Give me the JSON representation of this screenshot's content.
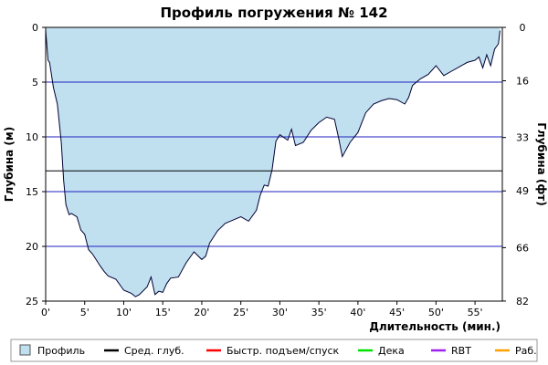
{
  "chart_data": {
    "type": "area",
    "title": "Профиль погружения № 142",
    "xlabel": "Длительность (мин.)",
    "ylabel_left": "Глубина (м)",
    "ylabel_right": "Глубина (фт)",
    "x_ticks": [
      "0'",
      "5'",
      "10'",
      "15'",
      "20'",
      "25'",
      "30'",
      "35'",
      "40'",
      "45'",
      "50'",
      "55'"
    ],
    "x_tick_values": [
      0,
      5,
      10,
      15,
      20,
      25,
      30,
      35,
      40,
      45,
      50,
      55
    ],
    "y_ticks_left": [
      "0",
      "5",
      "10",
      "15",
      "20",
      "25"
    ],
    "y_tick_values_left": [
      0,
      5,
      10,
      15,
      20,
      25
    ],
    "y_ticks_right": [
      "0",
      "16",
      "33",
      "49",
      "66",
      "82"
    ],
    "xlim": [
      0,
      58.5
    ],
    "ylim": [
      0,
      25
    ],
    "grid": true,
    "average_depth": 13.1,
    "series": [
      {
        "name": "Профиль",
        "color": "#c0e0f0",
        "x": [
          0,
          0.3,
          0.5,
          1.0,
          1.5,
          2.0,
          2.3,
          2.6,
          3.0,
          3.3,
          4.0,
          4.5,
          5.0,
          5.5,
          6.0,
          7.0,
          7.5,
          8.0,
          9.0,
          10.0,
          11.0,
          11.5,
          12.0,
          13.0,
          13.5,
          14.0,
          14.5,
          15.0,
          15.5,
          16.0,
          17.0,
          18.0,
          19.0,
          20.0,
          20.5,
          21.0,
          22.0,
          23.0,
          24.0,
          25.0,
          26.0,
          27.0,
          27.5,
          28.0,
          28.5,
          29.0,
          29.5,
          30.0,
          31.0,
          31.5,
          32.0,
          33.0,
          34.0,
          35.0,
          36.0,
          37.0,
          37.5,
          38.0,
          39.0,
          40.0,
          41.0,
          42.0,
          43.0,
          44.0,
          45.0,
          46.0,
          46.5,
          47.0,
          48.0,
          49.0,
          50.0,
          51.0,
          52.0,
          53.0,
          54.0,
          55.0,
          55.5,
          56.0,
          56.5,
          57.0,
          57.5,
          58.0,
          58.2
        ],
        "y": [
          0.3,
          3.0,
          3.2,
          5.5,
          7.0,
          10.5,
          14.0,
          16.2,
          17.1,
          17.0,
          17.3,
          18.5,
          18.9,
          20.3,
          20.7,
          21.8,
          22.3,
          22.7,
          23.0,
          24.0,
          24.3,
          24.6,
          24.4,
          23.7,
          22.8,
          24.4,
          24.1,
          24.2,
          23.4,
          22.9,
          22.8,
          21.5,
          20.5,
          21.2,
          20.9,
          19.7,
          18.6,
          17.9,
          17.6,
          17.3,
          17.7,
          16.7,
          15.3,
          14.4,
          14.5,
          13.0,
          10.4,
          9.8,
          10.3,
          9.3,
          10.8,
          10.5,
          9.4,
          8.7,
          8.2,
          8.4,
          10.0,
          11.8,
          10.5,
          9.6,
          7.8,
          7.0,
          6.7,
          6.5,
          6.6,
          7.0,
          6.4,
          5.3,
          4.7,
          4.3,
          3.5,
          4.4,
          4.0,
          3.6,
          3.2,
          3.0,
          2.7,
          3.7,
          2.5,
          3.5,
          2.0,
          1.5,
          0.3
        ]
      }
    ],
    "legend": {
      "placement": "bottom",
      "items": [
        {
          "label": "Профиль",
          "color": "#c0e0f0",
          "kind": "box"
        },
        {
          "label": "Сред. глуб.",
          "color": "#000000",
          "kind": "line"
        },
        {
          "label": "Быстр. подъем/спуск",
          "color": "#ff0000",
          "kind": "line"
        },
        {
          "label": "Дека",
          "color": "#00e000",
          "kind": "line"
        },
        {
          "label": "RBT",
          "color": "#a020f0",
          "kind": "line"
        },
        {
          "label": "Раб.",
          "color": "#ffa000",
          "kind": "line"
        }
      ]
    }
  }
}
